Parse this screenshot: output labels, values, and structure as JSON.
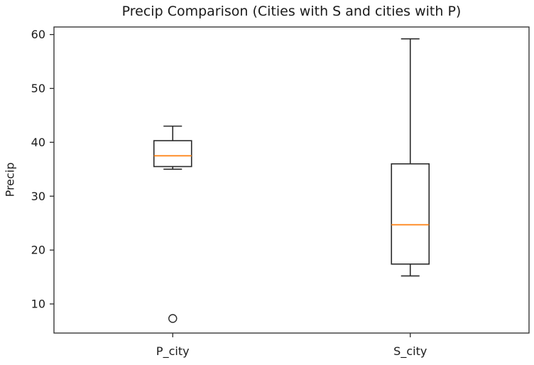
{
  "chart_data": {
    "type": "boxplot",
    "title": "Precip Comparison (Cities with S and cities with P)",
    "ylabel": "Precip",
    "xlabel": "",
    "categories": [
      "P_city",
      "S_city"
    ],
    "positions": [
      1,
      2
    ],
    "boxes": [
      {
        "label": "P_city",
        "whisker_low": 35.0,
        "q1": 35.5,
        "median": 37.5,
        "q3": 40.3,
        "whisker_high": 43.0,
        "outliers": [
          7.3
        ]
      },
      {
        "label": "S_city",
        "whisker_low": 15.2,
        "q1": 17.4,
        "median": 24.7,
        "q3": 36.0,
        "whisker_high": 59.2,
        "outliers": []
      }
    ],
    "yticks": [
      10,
      20,
      30,
      40,
      50,
      60
    ],
    "ylim": [
      4.6,
      61.4
    ],
    "xlim": [
      0.5,
      2.5
    ],
    "grid": false,
    "legend": null,
    "colors": {
      "box_line": "#2a2a2a",
      "median_line": "#ff7f0e",
      "axis_line": "#2a2a2a",
      "text": "#1a1a1a",
      "background": "#ffffff"
    }
  }
}
